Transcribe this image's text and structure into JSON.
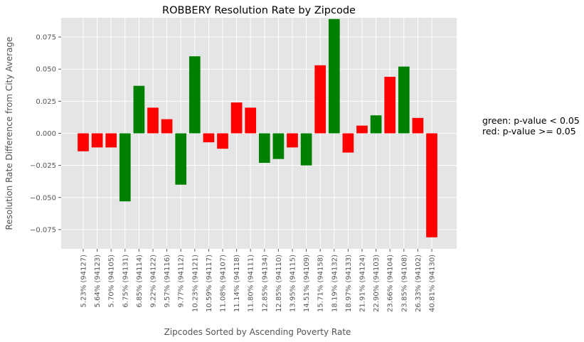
{
  "chart_data": {
    "type": "bar",
    "title": "ROBBERY Resolution Rate by Zipcode",
    "xlabel": "Zipcodes Sorted by Ascending Poverty Rate",
    "ylabel": "Resolution Rate Difference from City Average",
    "ylim": [
      -0.09,
      0.09
    ],
    "yticks": [
      -0.075,
      -0.05,
      -0.025,
      0.0,
      0.025,
      0.05,
      0.075
    ],
    "ytick_labels": [
      "−0.075",
      "−0.050",
      "−0.025",
      "0.000",
      "0.025",
      "0.050",
      "0.075"
    ],
    "grid": true,
    "categories": [
      "5.23% (94127)",
      "5.64% (94123)",
      "5.70% (94105)",
      "6.75% (94131)",
      "6.85% (94114)",
      "9.22% (94122)",
      "9.57% (94116)",
      "9.77% (94112)",
      "10.23% (94121)",
      "10.59% (94117)",
      "11.08% (94107)",
      "11.14% (94118)",
      "11.80% (94111)",
      "12.85% (94134)",
      "12.85% (94110)",
      "13.95% (94115)",
      "14.51% (94109)",
      "15.71% (94158)",
      "18.19% (94132)",
      "18.97% (94133)",
      "21.91% (94124)",
      "22.90% (94103)",
      "23.66% (94104)",
      "23.85% (94108)",
      "26.33% (94102)",
      "40.81% (94130)"
    ],
    "values": [
      -0.014,
      -0.011,
      -0.011,
      -0.053,
      0.037,
      0.02,
      0.011,
      -0.04,
      0.06,
      -0.007,
      -0.012,
      0.024,
      0.02,
      -0.023,
      -0.02,
      -0.011,
      -0.025,
      0.053,
      0.089,
      -0.015,
      0.006,
      0.014,
      0.044,
      0.052,
      0.012,
      -0.081
    ],
    "significance": [
      "red",
      "red",
      "red",
      "green",
      "green",
      "red",
      "red",
      "green",
      "green",
      "red",
      "red",
      "red",
      "red",
      "green",
      "green",
      "red",
      "green",
      "red",
      "green",
      "red",
      "red",
      "green",
      "red",
      "green",
      "red",
      "red"
    ],
    "colors": {
      "green": "#008000",
      "red": "#ff0000",
      "plot_bg": "#e5e5e5",
      "grid": "#ffffff",
      "tick_text": "#555555"
    },
    "annotations": [
      "green: p-value < 0.05",
      "red: p-value >= 0.05"
    ]
  }
}
